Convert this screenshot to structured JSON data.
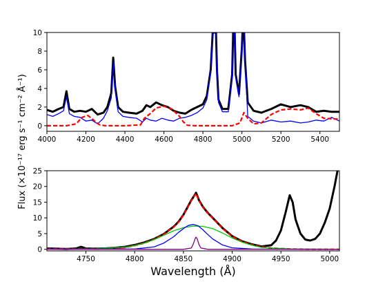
{
  "chart_data": [
    {
      "type": "line",
      "panel": "top",
      "xlim": [
        4000,
        5500
      ],
      "ylim": [
        -0.6,
        10
      ],
      "xticks": [
        4000,
        4200,
        4400,
        4600,
        4800,
        5000,
        5200,
        5400
      ],
      "yticks": [
        0,
        2,
        4,
        6,
        8,
        10
      ],
      "xlabel": "",
      "ylabel": "",
      "series": [
        {
          "color": "#000000",
          "style": "solid",
          "x": [
            4000,
            4030,
            4060,
            4085,
            4100,
            4115,
            4140,
            4170,
            4200,
            4230,
            4260,
            4290,
            4310,
            4330,
            4340,
            4350,
            4365,
            4390,
            4420,
            4460,
            4490,
            4510,
            4530,
            4560,
            4590,
            4620,
            4650,
            4680,
            4710,
            4740,
            4770,
            4800,
            4820,
            4840,
            4850,
            4855,
            4861,
            4867,
            4872,
            4880,
            4900,
            4930,
            4950,
            4955,
            4959,
            4963,
            4968,
            4985,
            5000,
            5003,
            5007,
            5011,
            5016,
            5030,
            5060,
            5100,
            5150,
            5200,
            5250,
            5300,
            5340,
            5380,
            5420,
            5460,
            5500
          ],
          "y": [
            1.7,
            1.5,
            1.8,
            2.0,
            3.7,
            1.8,
            1.5,
            1.6,
            1.5,
            1.8,
            1.2,
            1.4,
            2.0,
            3.5,
            7.3,
            4.2,
            2.0,
            1.5,
            1.4,
            1.3,
            1.6,
            2.2,
            2.0,
            2.5,
            2.2,
            2.0,
            1.6,
            1.4,
            1.3,
            1.7,
            2.0,
            2.3,
            3.2,
            6.0,
            10,
            10,
            10,
            10,
            6.0,
            2.8,
            1.8,
            1.8,
            5.5,
            10,
            10,
            10,
            5.5,
            3.4,
            8.5,
            10,
            10,
            10,
            7.0,
            2.5,
            1.6,
            1.4,
            1.8,
            2.3,
            2.0,
            2.2,
            2.0,
            1.5,
            1.6,
            1.5,
            1.5
          ]
        },
        {
          "color": "#0000ff",
          "style": "solid",
          "x": [
            4000,
            4030,
            4060,
            4085,
            4100,
            4115,
            4140,
            4170,
            4200,
            4230,
            4260,
            4290,
            4310,
            4330,
            4340,
            4350,
            4365,
            4390,
            4420,
            4460,
            4490,
            4510,
            4530,
            4560,
            4590,
            4620,
            4650,
            4680,
            4710,
            4740,
            4770,
            4800,
            4820,
            4840,
            4850,
            4855,
            4861,
            4867,
            4872,
            4880,
            4900,
            4930,
            4950,
            4955,
            4959,
            4963,
            4968,
            4985,
            5000,
            5003,
            5007,
            5011,
            5016,
            5030,
            5060,
            5100,
            5150,
            5200,
            5250,
            5300,
            5340,
            5380,
            5420,
            5460,
            5500
          ],
          "y": [
            1.2,
            1.0,
            1.3,
            1.6,
            3.1,
            1.3,
            1.0,
            0.9,
            0.5,
            0.6,
            0.2,
            0.8,
            1.6,
            3.0,
            6.8,
            3.8,
            1.5,
            1.0,
            0.9,
            0.8,
            0.4,
            0.8,
            0.6,
            0.5,
            0.8,
            0.6,
            0.5,
            0.8,
            0.9,
            1.1,
            1.4,
            1.9,
            2.8,
            5.8,
            10,
            10,
            10,
            10,
            5.8,
            2.5,
            1.5,
            1.5,
            5.2,
            10,
            10,
            10,
            5.2,
            3.1,
            8.2,
            10,
            10,
            10,
            6.8,
            1.0,
            0.5,
            0.3,
            0.6,
            0.4,
            0.5,
            0.3,
            0.4,
            0.6,
            0.5,
            0.9,
            0.5
          ]
        },
        {
          "color": "#ff0000",
          "style": "dashed",
          "x": [
            4000,
            4100,
            4150,
            4180,
            4210,
            4240,
            4270,
            4300,
            4400,
            4480,
            4500,
            4530,
            4560,
            4600,
            4640,
            4680,
            4700,
            4720,
            4760,
            4800,
            4900,
            4950,
            4990,
            5010,
            5030,
            5060,
            5100,
            5150,
            5200,
            5250,
            5300,
            5340,
            5380,
            5420,
            5500
          ],
          "y": [
            0,
            0,
            0.2,
            0.9,
            1.1,
            0.6,
            0.1,
            0,
            0,
            0.1,
            0.8,
            1.3,
            1.9,
            2.1,
            1.8,
            1.0,
            0.4,
            0.05,
            0,
            0,
            0,
            0,
            0.3,
            1.4,
            0.8,
            0.2,
            0.3,
            1.2,
            1.7,
            1.8,
            1.7,
            1.9,
            1.3,
            0.8,
            0.7
          ]
        }
      ]
    },
    {
      "type": "line",
      "panel": "bottom",
      "xlim": [
        4710,
        5010
      ],
      "ylim": [
        -0.5,
        25
      ],
      "xticks": [
        4750,
        4800,
        4850,
        4900,
        4950,
        5000
      ],
      "yticks": [
        0,
        5,
        10,
        15,
        20,
        25
      ],
      "xlabel": "Wavelength (Å)",
      "ylabel": "Flux (×10⁻¹⁷ erg s⁻¹ cm⁻² Å⁻¹)",
      "series": [
        {
          "color": "#000000",
          "style": "solid",
          "x": [
            4710,
            4720,
            4730,
            4740,
            4745,
            4750,
            4760,
            4770,
            4780,
            4790,
            4800,
            4810,
            4820,
            4830,
            4840,
            4845,
            4850,
            4855,
            4858,
            4861,
            4863,
            4866,
            4870,
            4875,
            4880,
            4890,
            4900,
            4910,
            4920,
            4930,
            4940,
            4945,
            4950,
            4955,
            4959,
            4962,
            4965,
            4970,
            4975,
            4980,
            4985,
            4990,
            4995,
            5000,
            5005,
            5008
          ],
          "y": [
            0.3,
            0.2,
            0.1,
            0.3,
            0.8,
            0.3,
            0.2,
            0.3,
            0.5,
            0.8,
            1.4,
            2.2,
            3.3,
            4.9,
            7.2,
            8.8,
            11.0,
            13.8,
            15.6,
            17.0,
            18.0,
            15.6,
            13.5,
            11.6,
            10.0,
            6.8,
            4.2,
            2.6,
            1.6,
            0.9,
            1.3,
            2.8,
            6.0,
            12.0,
            17.2,
            15.0,
            9.5,
            5.0,
            3.1,
            2.8,
            3.3,
            5.0,
            8.5,
            13.0,
            20.0,
            25.0
          ]
        },
        {
          "color": "#ff0000",
          "style": "dashed",
          "x": [
            4710,
            4740,
            4770,
            4790,
            4800,
            4810,
            4820,
            4830,
            4840,
            4845,
            4850,
            4855,
            4858,
            4861,
            4863,
            4866,
            4870,
            4875,
            4880,
            4890,
            4900,
            4910,
            4920,
            4930,
            4940,
            4960,
            4980,
            5010
          ],
          "y": [
            0.2,
            0.2,
            0.25,
            0.6,
            1.2,
            2.0,
            3.2,
            4.8,
            7.1,
            8.7,
            10.9,
            13.7,
            15.5,
            16.9,
            17.8,
            15.5,
            13.4,
            11.5,
            9.9,
            6.7,
            4.1,
            2.5,
            1.5,
            0.8,
            0.4,
            0.1,
            0.0,
            0.0
          ]
        },
        {
          "color": "#00c800",
          "style": "solid",
          "x": [
            4710,
            4760,
            4790,
            4800,
            4810,
            4820,
            4830,
            4840,
            4850,
            4860,
            4870,
            4880,
            4890,
            4900,
            4910,
            4920,
            4930,
            4960,
            5010
          ],
          "y": [
            0.1,
            0.2,
            0.7,
            1.2,
            2.0,
            3.1,
            4.5,
            5.9,
            6.9,
            7.4,
            7.3,
            6.6,
            5.2,
            3.6,
            2.3,
            1.3,
            0.6,
            0.1,
            0.0
          ]
        },
        {
          "color": "#0000ff",
          "style": "solid",
          "x": [
            4710,
            4800,
            4820,
            4830,
            4840,
            4845,
            4850,
            4855,
            4860,
            4865,
            4870,
            4875,
            4880,
            4890,
            4900,
            4920,
            5010
          ],
          "y": [
            0.1,
            0.1,
            0.8,
            2.0,
            4.0,
            5.4,
            6.6,
            7.6,
            7.9,
            7.5,
            6.2,
            4.7,
            3.3,
            1.4,
            0.5,
            0.1,
            0.0
          ]
        },
        {
          "color": "#800080",
          "style": "solid",
          "x": [
            4710,
            4850,
            4858,
            4860,
            4862,
            4863,
            4864,
            4866,
            4868,
            4875,
            5010
          ],
          "y": [
            0.0,
            0.0,
            0.4,
            1.6,
            3.4,
            3.9,
            3.4,
            1.5,
            0.4,
            0.0,
            0.0
          ]
        }
      ]
    }
  ]
}
